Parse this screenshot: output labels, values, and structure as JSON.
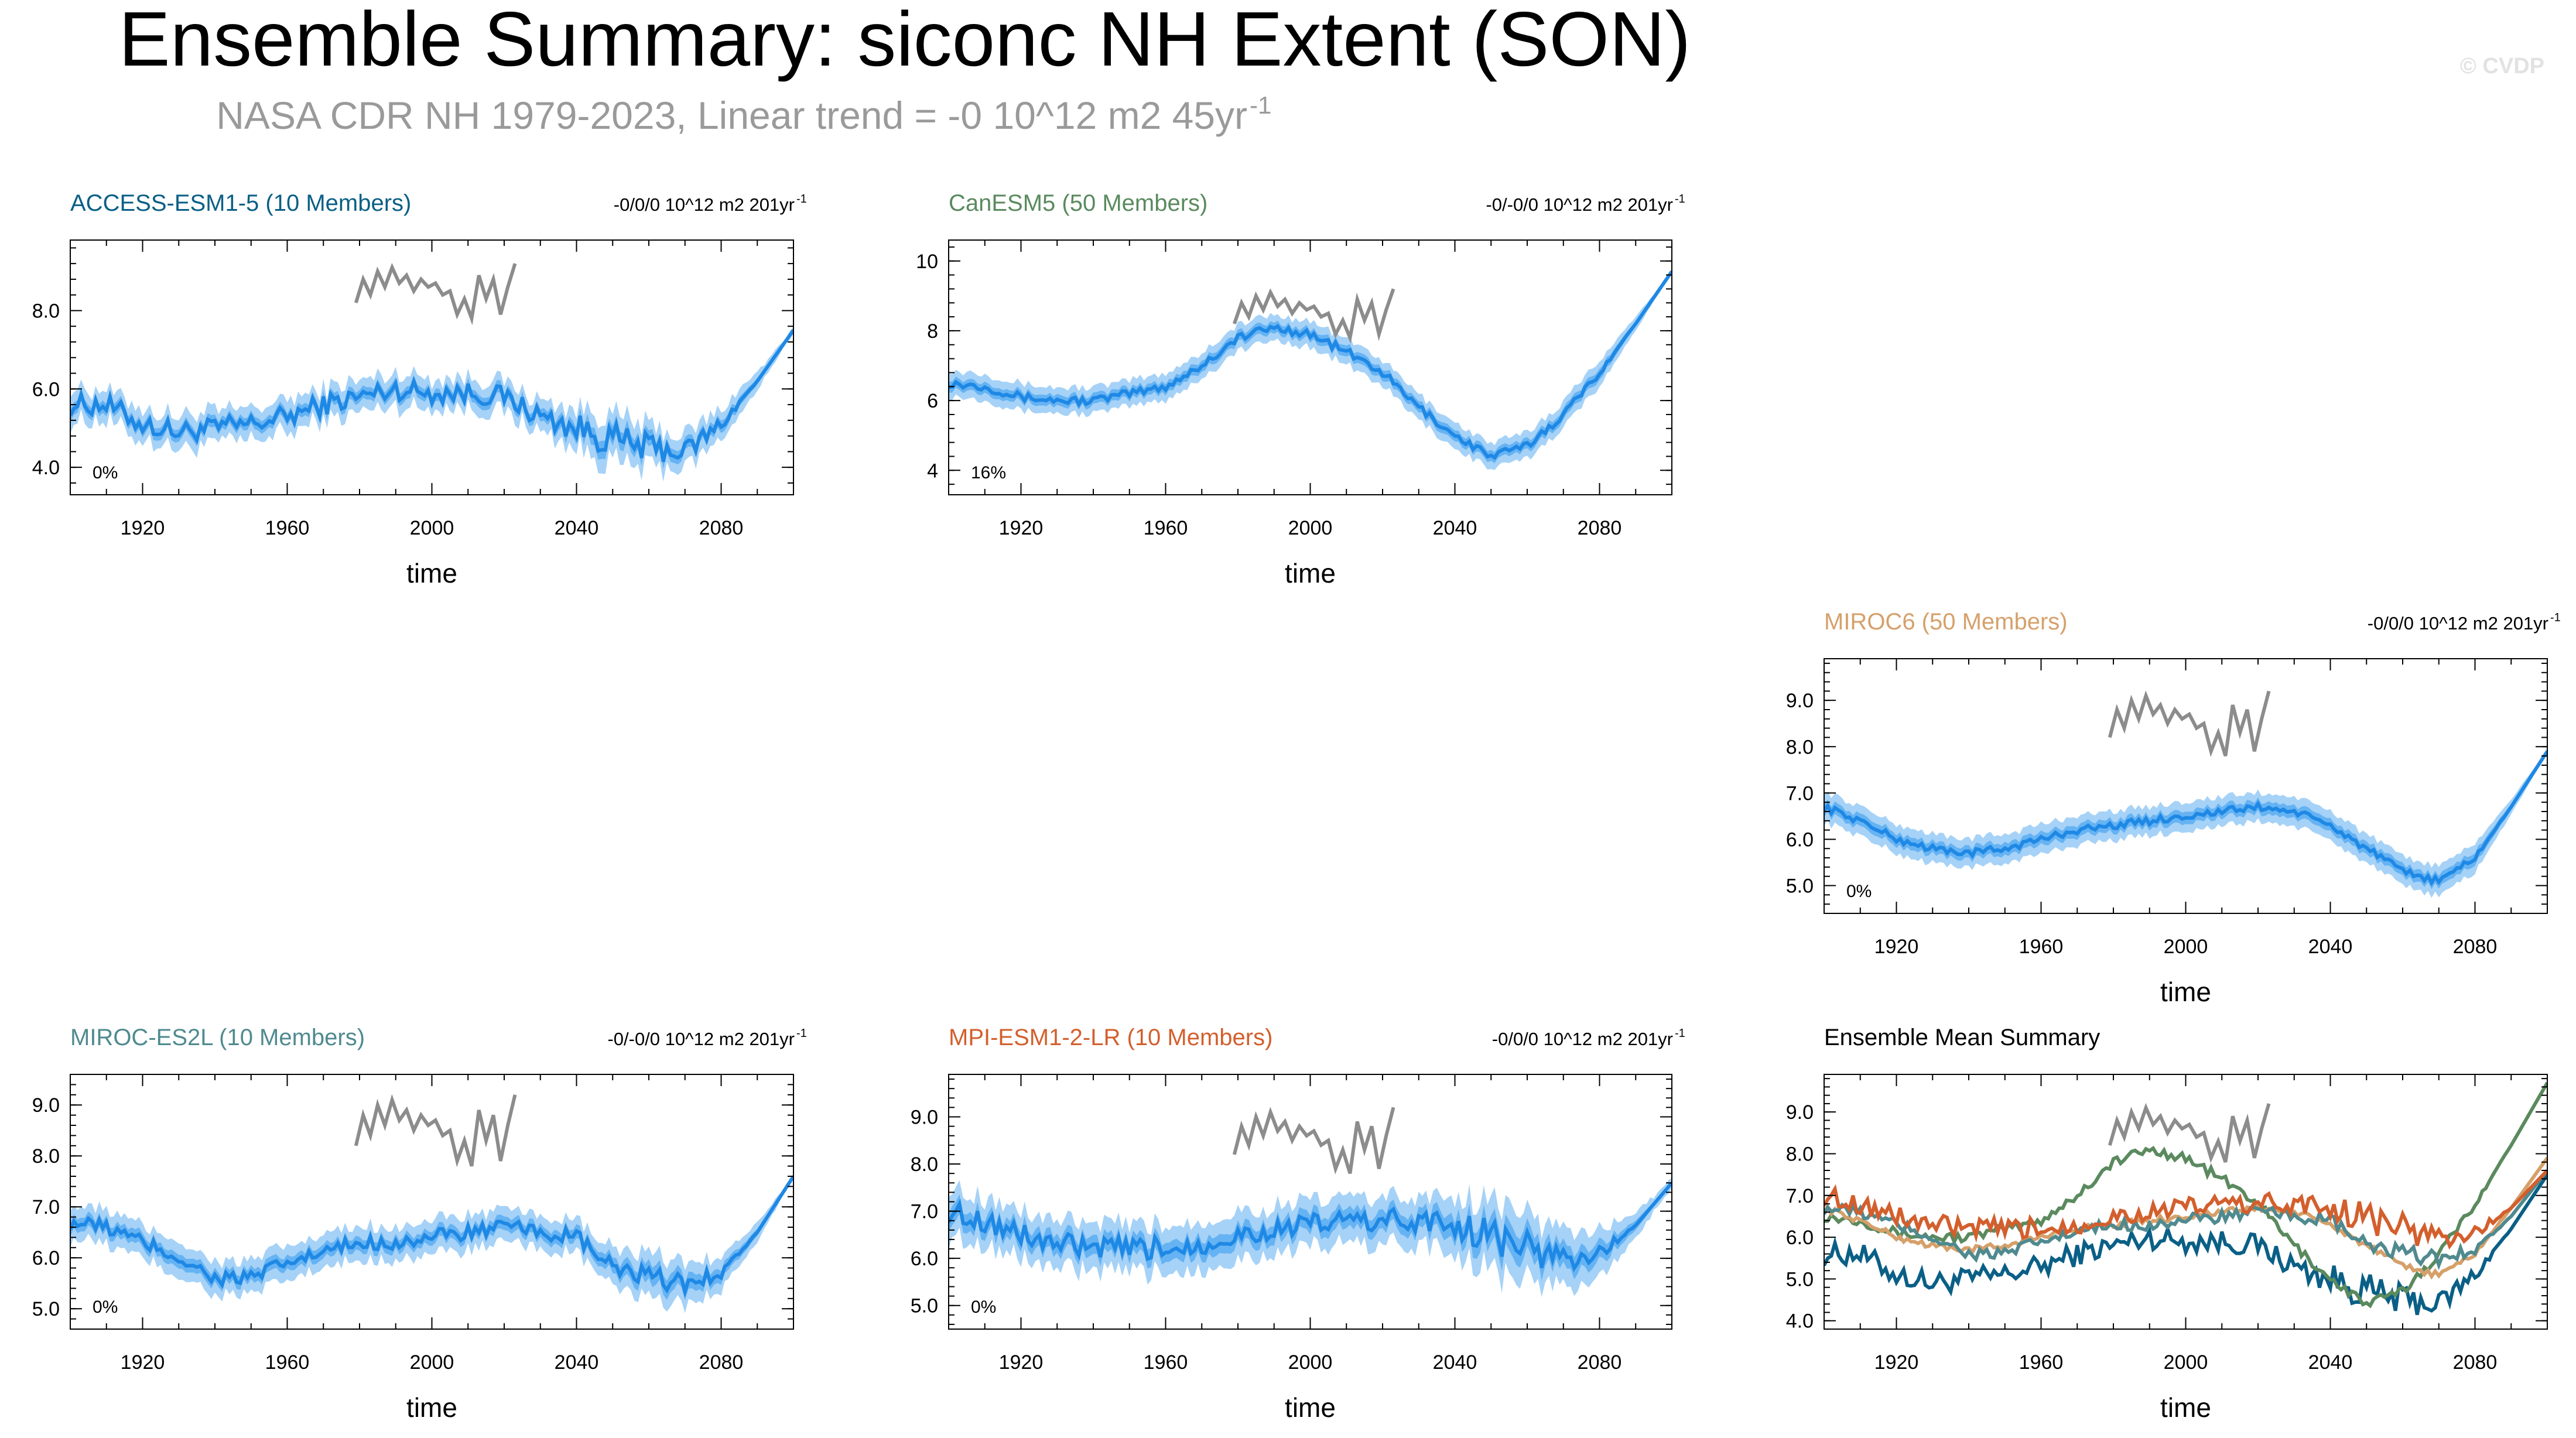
{
  "header": {
    "title": "Ensemble Summary: siconc NH Extent (SON)",
    "subtitle": "NASA CDR NH 1979-2023, Linear trend = -0 10^12 m2 45yr",
    "subtitle_sup": "-1",
    "watermark": "© CVDP"
  },
  "colors": {
    "obs": "#8c8c8c",
    "band_outer": "#a6d2f7",
    "band_inner": "#5aaef2",
    "mean": "#1e88e5",
    "access": "#0a5f86",
    "canesm": "#5a8a5e",
    "miroc6": "#d6a06a",
    "mirocEs2l": "#4f8a8f",
    "mpi": "#d35f2d"
  },
  "chart_data": [
    {
      "id": "access",
      "type": "line",
      "title": "ACCESS-ESM1-5 (10 Members)",
      "trend_label": "-0/0/0 10^12 m2 201yr",
      "trend_sup": "-1",
      "pct": "0%",
      "xlabel": "time",
      "xlim": [
        1900,
        2100
      ],
      "ylim": [
        3.3,
        9.8
      ],
      "yticks": [
        4.0,
        6.0,
        8.0
      ],
      "ytick_labels": [
        "4.0",
        "6.0",
        "8.0"
      ],
      "xticks": [
        1920,
        1960,
        2000,
        2040,
        2080
      ],
      "mean": [
        [
          1900,
          5.6
        ],
        [
          1910,
          5.6
        ],
        [
          1920,
          5.1
        ],
        [
          1930,
          4.9
        ],
        [
          1940,
          5.0
        ],
        [
          1950,
          5.1
        ],
        [
          1960,
          5.3
        ],
        [
          1970,
          5.6
        ],
        [
          1980,
          5.8
        ],
        [
          1990,
          6.0
        ],
        [
          2000,
          5.9
        ],
        [
          2010,
          5.9
        ],
        [
          2020,
          5.8
        ],
        [
          2030,
          5.3
        ],
        [
          2040,
          5.0
        ],
        [
          2050,
          4.7
        ],
        [
          2060,
          4.5
        ],
        [
          2070,
          4.4
        ],
        [
          2080,
          5.1
        ],
        [
          2090,
          6.2
        ],
        [
          2100,
          7.5
        ]
      ],
      "spread": 0.35,
      "noise": 0.28,
      "wide": [
        [
          2030,
          2070,
          0.55
        ]
      ],
      "obs": [
        [
          1979,
          8.2
        ],
        [
          1981,
          8.8
        ],
        [
          1983,
          8.4
        ],
        [
          1985,
          9.0
        ],
        [
          1987,
          8.6
        ],
        [
          1989,
          9.1
        ],
        [
          1991,
          8.7
        ],
        [
          1993,
          8.9
        ],
        [
          1995,
          8.5
        ],
        [
          1997,
          8.8
        ],
        [
          1999,
          8.6
        ],
        [
          2001,
          8.7
        ],
        [
          2003,
          8.4
        ],
        [
          2005,
          8.5
        ],
        [
          2007,
          7.9
        ],
        [
          2009,
          8.3
        ],
        [
          2011,
          7.8
        ],
        [
          2013,
          8.9
        ],
        [
          2015,
          8.3
        ],
        [
          2017,
          8.8
        ],
        [
          2019,
          7.9
        ],
        [
          2021,
          8.6
        ],
        [
          2023,
          9.2
        ]
      ]
    },
    {
      "id": "canesm",
      "type": "line",
      "title": "CanESM5 (50 Members)",
      "trend_label": "-0/-0/0 10^12 m2 201yr",
      "trend_sup": "-1",
      "pct": "16%",
      "xlabel": "time",
      "xlim": [
        1900,
        2100
      ],
      "ylim": [
        3.3,
        10.6
      ],
      "yticks": [
        4,
        6,
        8,
        10
      ],
      "ytick_labels": [
        "4",
        "6",
        "8",
        "10"
      ],
      "xticks": [
        1920,
        1960,
        2000,
        2040,
        2080
      ],
      "mean": [
        [
          1900,
          6.5
        ],
        [
          1910,
          6.4
        ],
        [
          1920,
          6.1
        ],
        [
          1930,
          6.0
        ],
        [
          1940,
          6.0
        ],
        [
          1950,
          6.2
        ],
        [
          1960,
          6.4
        ],
        [
          1970,
          7.0
        ],
        [
          1980,
          7.8
        ],
        [
          1990,
          8.1
        ],
        [
          2000,
          7.9
        ],
        [
          2010,
          7.4
        ],
        [
          2020,
          6.8
        ],
        [
          2030,
          5.8
        ],
        [
          2040,
          5.0
        ],
        [
          2050,
          4.4
        ],
        [
          2060,
          4.7
        ],
        [
          2070,
          5.6
        ],
        [
          2080,
          6.8
        ],
        [
          2090,
          8.2
        ],
        [
          2100,
          9.7
        ]
      ],
      "spread": 0.35,
      "noise": 0.12,
      "wide": [],
      "obs": [
        [
          1979,
          8.2
        ],
        [
          1981,
          8.8
        ],
        [
          1983,
          8.4
        ],
        [
          1985,
          9.0
        ],
        [
          1987,
          8.6
        ],
        [
          1989,
          9.1
        ],
        [
          1991,
          8.7
        ],
        [
          1993,
          8.9
        ],
        [
          1995,
          8.5
        ],
        [
          1997,
          8.8
        ],
        [
          1999,
          8.6
        ],
        [
          2001,
          8.7
        ],
        [
          2003,
          8.4
        ],
        [
          2005,
          8.5
        ],
        [
          2007,
          7.9
        ],
        [
          2009,
          8.3
        ],
        [
          2011,
          7.8
        ],
        [
          2013,
          8.9
        ],
        [
          2015,
          8.3
        ],
        [
          2017,
          8.8
        ],
        [
          2019,
          7.9
        ],
        [
          2021,
          8.6
        ],
        [
          2023,
          9.2
        ]
      ]
    },
    {
      "id": "miroc6",
      "type": "line",
      "title": "MIROC6 (50 Members)",
      "trend_label": "-0/0/0 10^12 m2 201yr",
      "trend_sup": "-1",
      "pct": "0%",
      "xlabel": "time",
      "xlim": [
        1900,
        2100
      ],
      "ylim": [
        4.4,
        9.9
      ],
      "yticks": [
        5.0,
        6.0,
        7.0,
        8.0,
        9.0
      ],
      "ytick_labels": [
        "5.0",
        "6.0",
        "7.0",
        "8.0",
        "9.0"
      ],
      "xticks": [
        1920,
        1960,
        2000,
        2040,
        2080
      ],
      "mean": [
        [
          1900,
          6.7
        ],
        [
          1910,
          6.4
        ],
        [
          1920,
          6.0
        ],
        [
          1930,
          5.8
        ],
        [
          1940,
          5.7
        ],
        [
          1950,
          5.8
        ],
        [
          1960,
          6.0
        ],
        [
          1970,
          6.2
        ],
        [
          1980,
          6.3
        ],
        [
          1990,
          6.4
        ],
        [
          2000,
          6.5
        ],
        [
          2010,
          6.6
        ],
        [
          2020,
          6.7
        ],
        [
          2030,
          6.6
        ],
        [
          2040,
          6.3
        ],
        [
          2050,
          5.8
        ],
        [
          2060,
          5.3
        ],
        [
          2070,
          5.1
        ],
        [
          2080,
          5.6
        ],
        [
          2090,
          6.7
        ],
        [
          2100,
          7.9
        ]
      ],
      "spread": 0.3,
      "noise": 0.08,
      "wide": [],
      "obs": [
        [
          1979,
          8.2
        ],
        [
          1981,
          8.8
        ],
        [
          1983,
          8.4
        ],
        [
          1985,
          9.0
        ],
        [
          1987,
          8.6
        ],
        [
          1989,
          9.1
        ],
        [
          1991,
          8.7
        ],
        [
          1993,
          8.9
        ],
        [
          1995,
          8.5
        ],
        [
          1997,
          8.8
        ],
        [
          1999,
          8.6
        ],
        [
          2001,
          8.7
        ],
        [
          2003,
          8.4
        ],
        [
          2005,
          8.5
        ],
        [
          2007,
          7.9
        ],
        [
          2009,
          8.3
        ],
        [
          2011,
          7.8
        ],
        [
          2013,
          8.9
        ],
        [
          2015,
          8.3
        ],
        [
          2017,
          8.8
        ],
        [
          2019,
          7.9
        ],
        [
          2021,
          8.6
        ],
        [
          2023,
          9.2
        ]
      ]
    },
    {
      "id": "mirocEs2l",
      "type": "line",
      "title": "MIROC-ES2L (10 Members)",
      "trend_label": "-0/-0/0 10^12 m2 201yr",
      "trend_sup": "-1",
      "pct": "0%",
      "xlabel": "time",
      "xlim": [
        1900,
        2100
      ],
      "ylim": [
        4.6,
        9.6
      ],
      "yticks": [
        5.0,
        6.0,
        7.0,
        8.0,
        9.0
      ],
      "ytick_labels": [
        "5.0",
        "6.0",
        "7.0",
        "8.0",
        "9.0"
      ],
      "xticks": [
        1920,
        1960,
        2000,
        2040,
        2080
      ],
      "mean": [
        [
          1900,
          6.7
        ],
        [
          1910,
          6.6
        ],
        [
          1920,
          6.3
        ],
        [
          1930,
          6.0
        ],
        [
          1940,
          5.6
        ],
        [
          1950,
          5.6
        ],
        [
          1960,
          5.9
        ],
        [
          1970,
          6.1
        ],
        [
          1980,
          6.3
        ],
        [
          1990,
          6.3
        ],
        [
          2000,
          6.4
        ],
        [
          2010,
          6.5
        ],
        [
          2020,
          6.6
        ],
        [
          2030,
          6.5
        ],
        [
          2040,
          6.4
        ],
        [
          2050,
          5.8
        ],
        [
          2060,
          5.6
        ],
        [
          2070,
          5.5
        ],
        [
          2080,
          5.7
        ],
        [
          2090,
          6.5
        ],
        [
          2100,
          7.6
        ]
      ],
      "spread": 0.3,
      "noise": 0.15,
      "wide": [
        [
          2045,
          2080,
          0.45
        ]
      ],
      "obs": [
        [
          1979,
          8.2
        ],
        [
          1981,
          8.8
        ],
        [
          1983,
          8.4
        ],
        [
          1985,
          9.0
        ],
        [
          1987,
          8.6
        ],
        [
          1989,
          9.1
        ],
        [
          1991,
          8.7
        ],
        [
          1993,
          8.9
        ],
        [
          1995,
          8.5
        ],
        [
          1997,
          8.8
        ],
        [
          1999,
          8.6
        ],
        [
          2001,
          8.7
        ],
        [
          2003,
          8.4
        ],
        [
          2005,
          8.5
        ],
        [
          2007,
          7.9
        ],
        [
          2009,
          8.3
        ],
        [
          2011,
          7.8
        ],
        [
          2013,
          8.9
        ],
        [
          2015,
          8.3
        ],
        [
          2017,
          8.8
        ],
        [
          2019,
          7.9
        ],
        [
          2021,
          8.6
        ],
        [
          2023,
          9.2
        ]
      ]
    },
    {
      "id": "mpi",
      "type": "line",
      "title": "MPI-ESM1-2-LR (10 Members)",
      "trend_label": "-0/0/0 10^12 m2 201yr",
      "trend_sup": "-1",
      "pct": "0%",
      "xlabel": "time",
      "xlim": [
        1900,
        2100
      ],
      "ylim": [
        4.5,
        9.9
      ],
      "yticks": [
        5.0,
        6.0,
        7.0,
        8.0,
        9.0
      ],
      "ytick_labels": [
        "5.0",
        "6.0",
        "7.0",
        "8.0",
        "9.0"
      ],
      "xticks": [
        1920,
        1960,
        2000,
        2040,
        2080
      ],
      "mean": [
        [
          1900,
          7.0
        ],
        [
          1910,
          6.8
        ],
        [
          1920,
          6.5
        ],
        [
          1930,
          6.3
        ],
        [
          1940,
          6.2
        ],
        [
          1950,
          6.2
        ],
        [
          1960,
          6.2
        ],
        [
          1970,
          6.3
        ],
        [
          1980,
          6.5
        ],
        [
          1990,
          6.6
        ],
        [
          2000,
          6.7
        ],
        [
          2010,
          6.8
        ],
        [
          2020,
          6.8
        ],
        [
          2030,
          6.8
        ],
        [
          2040,
          6.7
        ],
        [
          2050,
          6.5
        ],
        [
          2060,
          6.2
        ],
        [
          2070,
          6.0
        ],
        [
          2080,
          6.1
        ],
        [
          2090,
          6.7
        ],
        [
          2100,
          7.6
        ]
      ],
      "spread": 0.45,
      "noise": 0.25,
      "wide": [
        [
          2030,
          2080,
          0.55
        ]
      ],
      "obs": [
        [
          1979,
          8.2
        ],
        [
          1981,
          8.8
        ],
        [
          1983,
          8.4
        ],
        [
          1985,
          9.0
        ],
        [
          1987,
          8.6
        ],
        [
          1989,
          9.1
        ],
        [
          1991,
          8.7
        ],
        [
          1993,
          8.9
        ],
        [
          1995,
          8.5
        ],
        [
          1997,
          8.8
        ],
        [
          1999,
          8.6
        ],
        [
          2001,
          8.7
        ],
        [
          2003,
          8.4
        ],
        [
          2005,
          8.5
        ],
        [
          2007,
          7.9
        ],
        [
          2009,
          8.3
        ],
        [
          2011,
          7.8
        ],
        [
          2013,
          8.9
        ],
        [
          2015,
          8.3
        ],
        [
          2017,
          8.8
        ],
        [
          2019,
          7.9
        ],
        [
          2021,
          8.6
        ],
        [
          2023,
          9.2
        ]
      ]
    },
    {
      "id": "summary",
      "type": "line",
      "title": "Ensemble Mean Summary",
      "xlabel": "time",
      "xlim": [
        1900,
        2100
      ],
      "ylim": [
        3.8,
        9.9
      ],
      "yticks": [
        4.0,
        5.0,
        6.0,
        7.0,
        8.0,
        9.0
      ],
      "ytick_labels": [
        "4.0",
        "5.0",
        "6.0",
        "7.0",
        "8.0",
        "9.0"
      ],
      "xticks": [
        1920,
        1960,
        2000,
        2040,
        2080
      ],
      "series_refs": [
        "access",
        "canesm",
        "miroc6",
        "mirocEs2l",
        "mpi"
      ],
      "obs": [
        [
          1979,
          8.2
        ],
        [
          1981,
          8.8
        ],
        [
          1983,
          8.4
        ],
        [
          1985,
          9.0
        ],
        [
          1987,
          8.6
        ],
        [
          1989,
          9.1
        ],
        [
          1991,
          8.7
        ],
        [
          1993,
          8.9
        ],
        [
          1995,
          8.5
        ],
        [
          1997,
          8.8
        ],
        [
          1999,
          8.6
        ],
        [
          2001,
          8.7
        ],
        [
          2003,
          8.4
        ],
        [
          2005,
          8.5
        ],
        [
          2007,
          7.9
        ],
        [
          2009,
          8.3
        ],
        [
          2011,
          7.8
        ],
        [
          2013,
          8.9
        ],
        [
          2015,
          8.3
        ],
        [
          2017,
          8.8
        ],
        [
          2019,
          7.9
        ],
        [
          2021,
          8.6
        ],
        [
          2023,
          9.2
        ]
      ]
    }
  ]
}
